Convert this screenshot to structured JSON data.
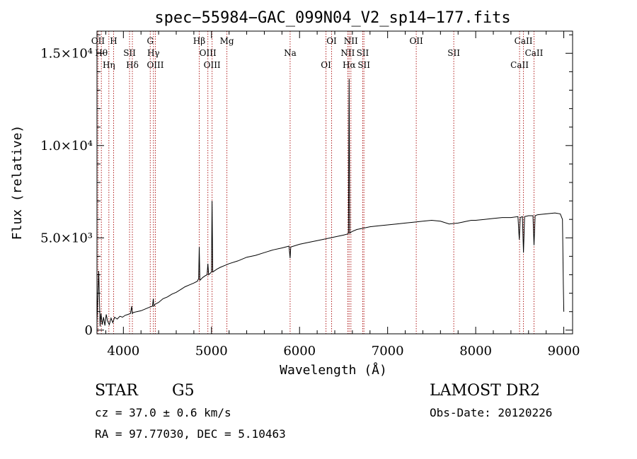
{
  "chart_data": {
    "type": "line",
    "title": "spec−55984−GAC_099N04_V2_sp14−177.fits",
    "xlabel": "Wavelength (Å)",
    "ylabel": "Flux (relative)",
    "xlim": [
      3700,
      9100
    ],
    "ylim": [
      -200,
      16200
    ],
    "x_ticks": [
      {
        "value": 4000,
        "label": "4000"
      },
      {
        "value": 5000,
        "label": "5000"
      },
      {
        "value": 6000,
        "label": "6000"
      },
      {
        "value": 7000,
        "label": "7000"
      },
      {
        "value": 8000,
        "label": "8000"
      },
      {
        "value": 9000,
        "label": "9000"
      }
    ],
    "y_ticks": [
      {
        "value": 0,
        "label": "0"
      },
      {
        "value": 5000,
        "label": "5.0×10³"
      },
      {
        "value": 10000,
        "label": "1.0×10⁴"
      },
      {
        "value": 15000,
        "label": "1.5×10⁴"
      }
    ],
    "line_color": "#000000",
    "marker_color": "#b22222",
    "series": [
      {
        "x": [
          3700,
          3720,
          3735,
          3745,
          3760,
          3775,
          3790,
          3805,
          3820,
          3840,
          3860,
          3880,
          3900,
          3930,
          3960,
          3990,
          4020,
          4050,
          4080,
          4095,
          4101,
          4110,
          4150,
          4200,
          4250,
          4300,
          4330,
          4340,
          4345,
          4360,
          4400,
          4450,
          4500,
          4550,
          4600,
          4650,
          4700,
          4750,
          4800,
          4840,
          4855,
          4861,
          4868,
          4880,
          4900,
          4930,
          4950,
          4959,
          4968,
          4990,
          5000,
          5007,
          5015,
          5030,
          5060,
          5100,
          5150,
          5200,
          5300,
          5400,
          5500,
          5600,
          5700,
          5800,
          5880,
          5893,
          5900,
          6000,
          6100,
          6200,
          6300,
          6400,
          6500,
          6540,
          6555,
          6563,
          6570,
          6580,
          6600,
          6650,
          6700,
          6800,
          6900,
          7000,
          7100,
          7200,
          7300,
          7400,
          7500,
          7600,
          7700,
          7800,
          7850,
          7900,
          7950,
          8000,
          8100,
          8200,
          8300,
          8400,
          8480,
          8495,
          8505,
          8530,
          8542,
          8555,
          8600,
          8650,
          8662,
          8675,
          8700,
          8800,
          8900,
          8960,
          8985,
          8995,
          9000
        ],
        "y": [
          400,
          3200,
          200,
          900,
          300,
          700,
          250,
          850,
          500,
          300,
          650,
          400,
          700,
          600,
          750,
          700,
          800,
          850,
          900,
          1300,
          900,
          950,
          1000,
          1050,
          1150,
          1250,
          1300,
          1700,
          1300,
          1400,
          1500,
          1700,
          1800,
          1950,
          2050,
          2200,
          2350,
          2450,
          2550,
          2650,
          2800,
          4500,
          2700,
          2750,
          2850,
          2950,
          3000,
          3600,
          3000,
          3100,
          3150,
          7000,
          3150,
          3200,
          3300,
          3400,
          3500,
          3600,
          3750,
          3950,
          4050,
          4200,
          4350,
          4450,
          4550,
          3900,
          4500,
          4650,
          4750,
          4850,
          4950,
          5050,
          5150,
          5200,
          5250,
          13600,
          5250,
          5300,
          5350,
          5450,
          5500,
          5600,
          5650,
          5700,
          5750,
          5800,
          5850,
          5900,
          5950,
          5900,
          5750,
          5800,
          5850,
          5900,
          5950,
          5950,
          6000,
          6050,
          6100,
          6100,
          6150,
          4900,
          6100,
          6150,
          4200,
          6150,
          6200,
          6200,
          4600,
          6200,
          6250,
          6300,
          6350,
          6300,
          6000,
          2500,
          1000
        ]
      }
    ],
    "lines": [
      {
        "x": 3712,
        "label": "OII"
      },
      {
        "x": 3750,
        "label": "Hθ"
      },
      {
        "x": 3835,
        "label": "Hη"
      },
      {
        "x": 3889,
        "label": "H"
      },
      {
        "x": 4070,
        "label": "SII"
      },
      {
        "x": 4102,
        "label": "Hδ"
      },
      {
        "x": 4305,
        "label": "G"
      },
      {
        "x": 4341,
        "label": "Hγ"
      },
      {
        "x": 4363,
        "label": "OIII"
      },
      {
        "x": 4861,
        "label": "Hβ"
      },
      {
        "x": 4959,
        "label": "OIII"
      },
      {
        "x": 5007,
        "label": "OIII"
      },
      {
        "x": 5175,
        "label": "Mg"
      },
      {
        "x": 5893,
        "label": "Na"
      },
      {
        "x": 6300,
        "label": "OI"
      },
      {
        "x": 6364,
        "label": "OI"
      },
      {
        "x": 6548,
        "label": "NII"
      },
      {
        "x": 6563,
        "label": "Hα"
      },
      {
        "x": 6583,
        "label": "NII"
      },
      {
        "x": 6717,
        "label": "SII"
      },
      {
        "x": 6731,
        "label": "SII"
      },
      {
        "x": 7325,
        "label": "OII"
      },
      {
        "x": 7751,
        "label": "SII"
      },
      {
        "x": 8498,
        "label": "CaII"
      },
      {
        "x": 8542,
        "label": "CaII"
      },
      {
        "x": 8662,
        "label": "CaII"
      }
    ]
  },
  "info": {
    "object_class": "STAR",
    "subclass": "G5",
    "survey": "LAMOST DR2",
    "redshift": "cz = 37.0 ± 0.6 km/s",
    "obs_date": "Obs-Date: 20120226",
    "coords": "RA =  97.77030, DEC =   5.10463"
  }
}
